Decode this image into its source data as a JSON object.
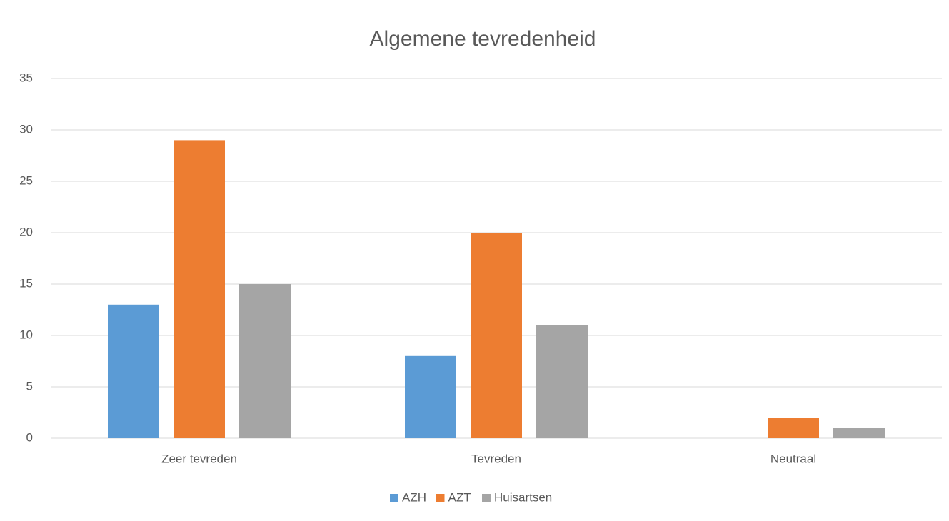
{
  "chart_data": {
    "type": "bar",
    "title": "Algemene tevredenheid",
    "categories": [
      "Zeer tevreden",
      "Tevreden",
      "Neutraal"
    ],
    "series": [
      {
        "name": "AZH",
        "color": "#5b9bd5",
        "values": [
          13,
          8,
          0
        ]
      },
      {
        "name": "AZT",
        "color": "#ed7d31",
        "values": [
          29,
          20,
          2
        ]
      },
      {
        "name": "Huisartsen",
        "color": "#a5a5a5",
        "values": [
          15,
          11,
          1
        ]
      }
    ],
    "ylim": [
      0,
      35
    ],
    "yticks": [
      0,
      5,
      10,
      15,
      20,
      25,
      30,
      35
    ],
    "grid": true,
    "legend": "bottom"
  }
}
